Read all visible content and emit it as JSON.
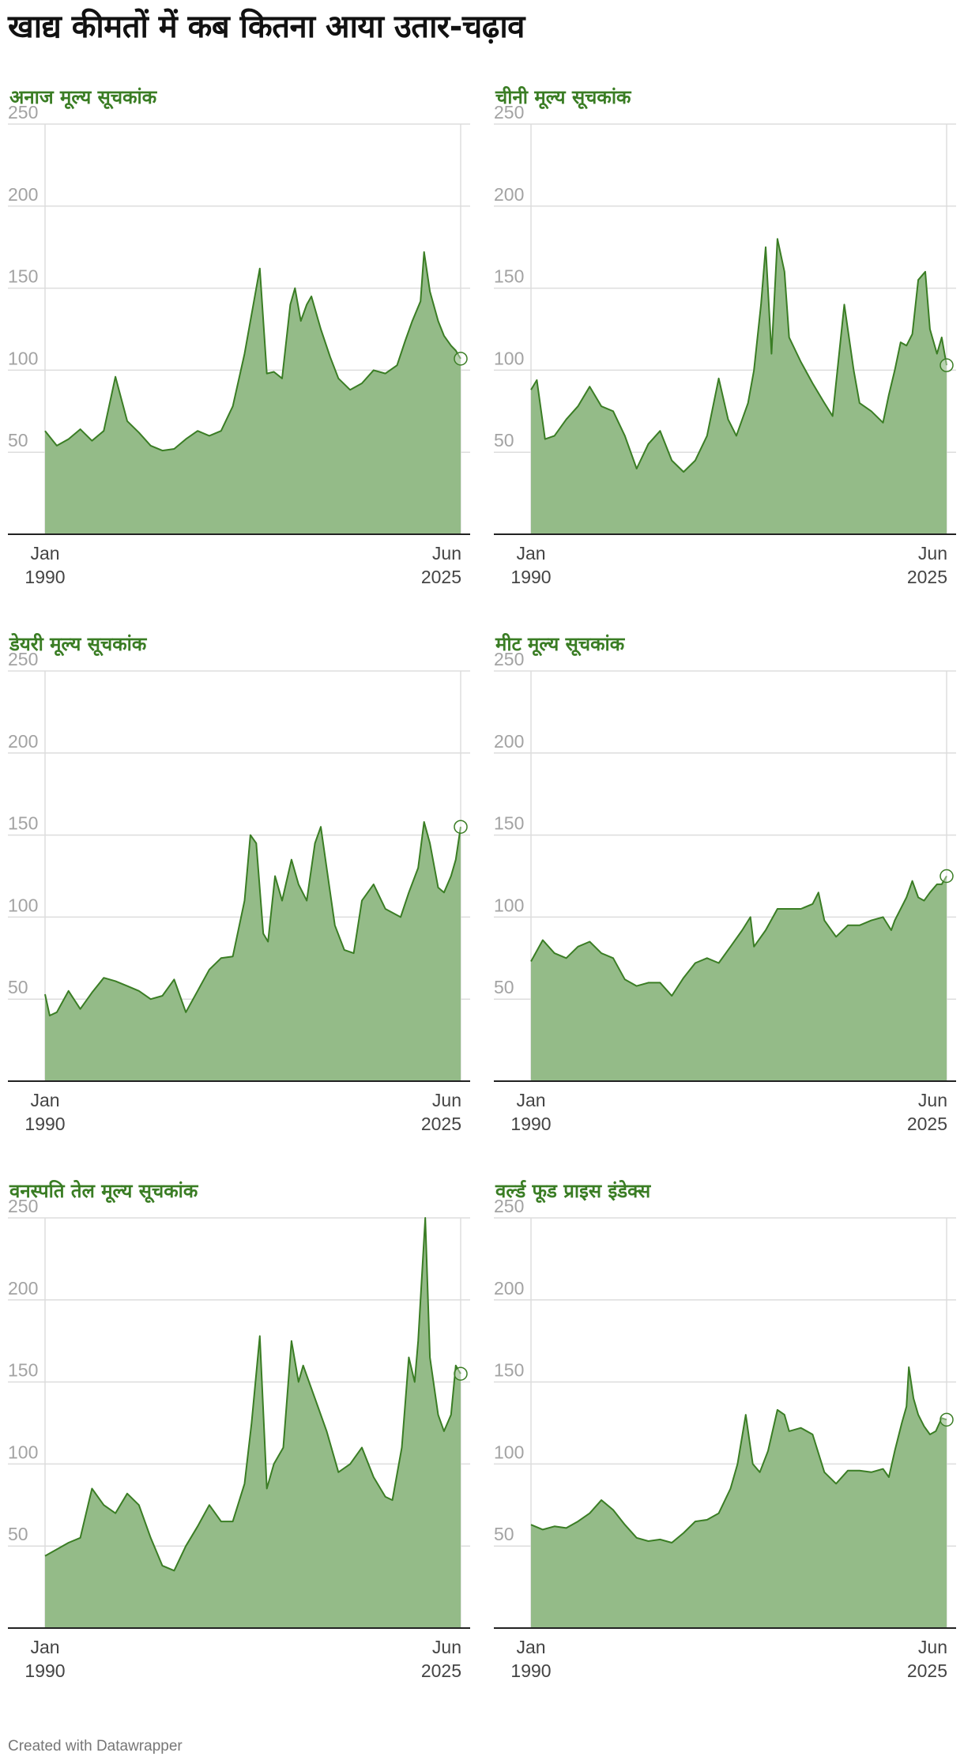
{
  "title": "खाद्य कीमतों में कब कितना आया उतार-चढ़ाव",
  "footer": "Created with Datawrapper",
  "colors": {
    "line": "#3a7d24",
    "fill": "#94bb88",
    "title": "#3a7d24",
    "grid": "#dddddd",
    "axis": "#222222"
  },
  "chart_data": [
    {
      "type": "area",
      "title": "अनाज मूल्य सूचकांक",
      "ylim": [
        0,
        250
      ],
      "yticks": [
        "50",
        "100",
        "150",
        "200",
        "250"
      ],
      "xticks": [
        {
          "line1": "Jan",
          "line2": "1990"
        },
        {
          "line1": "Jun",
          "line2": "2025"
        }
      ],
      "grid": true,
      "x": [
        1990.0,
        1991.0,
        1992.0,
        1993.0,
        1994.0,
        1995.0,
        1996.0,
        1997.0,
        1998.0,
        1999.0,
        2000.0,
        2001.0,
        2002.0,
        2003.0,
        2004.0,
        2005.0,
        2006.0,
        2007.0,
        2007.5,
        2008.3,
        2008.9,
        2009.5,
        2010.2,
        2010.9,
        2011.3,
        2011.8,
        2012.3,
        2012.7,
        2013.5,
        2014.3,
        2015.0,
        2016.0,
        2017.0,
        2018.0,
        2019.0,
        2020.0,
        2020.7,
        2021.3,
        2022.0,
        2022.3,
        2022.8,
        2023.5,
        2024.0,
        2024.6,
        2025.0,
        2025.42
      ],
      "values": [
        63,
        54,
        58,
        64,
        57,
        63,
        96,
        69,
        62,
        54,
        51,
        52,
        58,
        63,
        60,
        63,
        78,
        110,
        130,
        162,
        98,
        99,
        95,
        140,
        150,
        130,
        140,
        145,
        125,
        108,
        95,
        88,
        92,
        100,
        98,
        103,
        118,
        130,
        142,
        172,
        148,
        130,
        121,
        115,
        112,
        107
      ]
    },
    {
      "type": "area",
      "title": "चीनी मूल्य सूचकांक",
      "ylim": [
        0,
        250
      ],
      "yticks": [
        "50",
        "100",
        "150",
        "200",
        "250"
      ],
      "xticks": [
        {
          "line1": "Jan",
          "line2": "1990"
        },
        {
          "line1": "Jun",
          "line2": "2025"
        }
      ],
      "grid": true,
      "x": [
        1990.0,
        1990.5,
        1991.2,
        1992.0,
        1993.0,
        1994.0,
        1995.0,
        1996.0,
        1997.0,
        1998.0,
        1999.0,
        2000.0,
        2001.0,
        2002.0,
        2003.0,
        2004.0,
        2005.0,
        2006.0,
        2006.8,
        2007.5,
        2008.5,
        2009.0,
        2009.6,
        2010.0,
        2010.5,
        2011.0,
        2011.6,
        2012.0,
        2013.0,
        2014.0,
        2015.0,
        2015.7,
        2016.7,
        2017.5,
        2018.0,
        2019.0,
        2020.0,
        2020.5,
        2021.0,
        2021.5,
        2022.0,
        2022.5,
        2023.0,
        2023.6,
        2024.0,
        2024.6,
        2025.0,
        2025.42
      ],
      "values": [
        88,
        94,
        58,
        60,
        70,
        78,
        90,
        78,
        75,
        60,
        40,
        55,
        63,
        45,
        38,
        45,
        60,
        95,
        70,
        60,
        80,
        100,
        140,
        175,
        110,
        180,
        160,
        120,
        105,
        92,
        80,
        72,
        140,
        100,
        80,
        75,
        68,
        85,
        100,
        117,
        115,
        122,
        155,
        160,
        125,
        110,
        120,
        103
      ]
    },
    {
      "type": "area",
      "title": "डेयरी मूल्य सूचकांक",
      "ylim": [
        0,
        250
      ],
      "yticks": [
        "50",
        "100",
        "150",
        "200",
        "250"
      ],
      "xticks": [
        {
          "line1": "Jan",
          "line2": "1990"
        },
        {
          "line1": "Jun",
          "line2": "2025"
        }
      ],
      "grid": true,
      "x": [
        1990.0,
        1990.4,
        1991.0,
        1992.0,
        1993.0,
        1994.0,
        1995.0,
        1996.0,
        1997.0,
        1998.0,
        1999.0,
        2000.0,
        2001.0,
        2002.0,
        2003.0,
        2004.0,
        2005.0,
        2006.0,
        2007.0,
        2007.5,
        2008.0,
        2008.6,
        2009.0,
        2009.6,
        2010.2,
        2011.0,
        2011.6,
        2012.3,
        2013.0,
        2013.5,
        2014.0,
        2014.7,
        2015.5,
        2016.3,
        2017.0,
        2018.0,
        2019.0,
        2020.3,
        2021.0,
        2021.8,
        2022.3,
        2022.8,
        2023.5,
        2024.0,
        2024.6,
        2025.0,
        2025.42
      ],
      "values": [
        53,
        40,
        42,
        55,
        44,
        54,
        63,
        61,
        58,
        55,
        50,
        52,
        62,
        42,
        55,
        68,
        75,
        76,
        110,
        150,
        145,
        90,
        85,
        125,
        110,
        135,
        120,
        110,
        145,
        155,
        130,
        95,
        80,
        78,
        110,
        120,
        105,
        100,
        115,
        130,
        158,
        145,
        118,
        115,
        125,
        135,
        155
      ]
    },
    {
      "type": "area",
      "title": "मीट मूल्य सूचकांक",
      "ylim": [
        0,
        250
      ],
      "yticks": [
        "50",
        "100",
        "150",
        "200",
        "250"
      ],
      "xticks": [
        {
          "line1": "Jan",
          "line2": "1990"
        },
        {
          "line1": "Jun",
          "line2": "2025"
        }
      ],
      "grid": true,
      "x": [
        1990.0,
        1991.0,
        1992.0,
        1993.0,
        1994.0,
        1995.0,
        1996.0,
        1997.0,
        1998.0,
        1999.0,
        2000.0,
        2001.0,
        2002.0,
        2003.0,
        2004.0,
        2005.0,
        2006.0,
        2007.0,
        2008.0,
        2008.7,
        2009.0,
        2010.0,
        2011.0,
        2012.0,
        2013.0,
        2014.0,
        2014.5,
        2015.0,
        2016.0,
        2017.0,
        2018.0,
        2019.0,
        2020.0,
        2020.7,
        2021.0,
        2022.0,
        2022.5,
        2023.0,
        2023.5,
        2024.0,
        2024.6,
        2025.0,
        2025.42
      ],
      "values": [
        73,
        86,
        78,
        75,
        82,
        85,
        78,
        75,
        62,
        58,
        60,
        60,
        52,
        63,
        72,
        75,
        72,
        82,
        92,
        100,
        82,
        92,
        105,
        105,
        105,
        108,
        115,
        98,
        88,
        95,
        95,
        98,
        100,
        92,
        98,
        112,
        122,
        112,
        110,
        115,
        120,
        120,
        125
      ]
    },
    {
      "type": "area",
      "title": "वनस्पति तेल मूल्य सूचकांक",
      "ylim": [
        0,
        250
      ],
      "yticks": [
        "50",
        "100",
        "150",
        "200",
        "250"
      ],
      "xticks": [
        {
          "line1": "Jan",
          "line2": "1990"
        },
        {
          "line1": "Jun",
          "line2": "2025"
        }
      ],
      "grid": true,
      "x": [
        1990.0,
        1991.0,
        1992.0,
        1993.0,
        1994.0,
        1995.0,
        1996.0,
        1997.0,
        1998.0,
        1999.0,
        2000.0,
        2001.0,
        2002.0,
        2003.0,
        2004.0,
        2005.0,
        2006.0,
        2007.0,
        2007.6,
        2008.3,
        2008.9,
        2009.5,
        2010.3,
        2011.0,
        2011.6,
        2012.0,
        2013.0,
        2014.0,
        2015.0,
        2016.0,
        2017.0,
        2018.0,
        2019.0,
        2019.6,
        2020.4,
        2021.0,
        2021.5,
        2021.8,
        2022.2,
        2022.4,
        2022.8,
        2023.5,
        2024.0,
        2024.6,
        2025.0,
        2025.42
      ],
      "values": [
        44,
        48,
        52,
        55,
        85,
        75,
        70,
        82,
        75,
        55,
        38,
        35,
        50,
        62,
        75,
        65,
        65,
        88,
        125,
        178,
        85,
        100,
        110,
        175,
        150,
        160,
        140,
        120,
        95,
        100,
        110,
        92,
        80,
        78,
        110,
        165,
        150,
        175,
        225,
        250,
        165,
        130,
        120,
        130,
        160,
        155
      ]
    },
    {
      "type": "area",
      "title": "वर्ल्ड फूड प्राइस इंडेक्स",
      "ylim": [
        0,
        250
      ],
      "yticks": [
        "50",
        "100",
        "150",
        "200",
        "250"
      ],
      "xticks": [
        {
          "line1": "Jan",
          "line2": "1990"
        },
        {
          "line1": "Jun",
          "line2": "2025"
        }
      ],
      "grid": true,
      "x": [
        1990.0,
        1991.0,
        1992.0,
        1993.0,
        1994.0,
        1995.0,
        1996.0,
        1997.0,
        1998.0,
        1999.0,
        2000.0,
        2001.0,
        2002.0,
        2003.0,
        2004.0,
        2005.0,
        2006.0,
        2007.0,
        2007.6,
        2008.3,
        2008.9,
        2009.5,
        2010.2,
        2011.0,
        2011.6,
        2012.0,
        2013.0,
        2014.0,
        2015.0,
        2016.0,
        2017.0,
        2018.0,
        2019.0,
        2020.0,
        2020.5,
        2021.0,
        2021.6,
        2022.0,
        2022.2,
        2022.6,
        2023.0,
        2023.5,
        2024.0,
        2024.5,
        2025.0,
        2025.42
      ],
      "values": [
        63,
        60,
        62,
        61,
        65,
        70,
        78,
        72,
        63,
        55,
        53,
        54,
        52,
        58,
        65,
        66,
        70,
        85,
        100,
        130,
        100,
        95,
        108,
        133,
        130,
        120,
        122,
        118,
        95,
        88,
        96,
        96,
        95,
        97,
        92,
        108,
        125,
        135,
        159,
        140,
        130,
        123,
        118,
        120,
        128,
        127
      ]
    }
  ]
}
